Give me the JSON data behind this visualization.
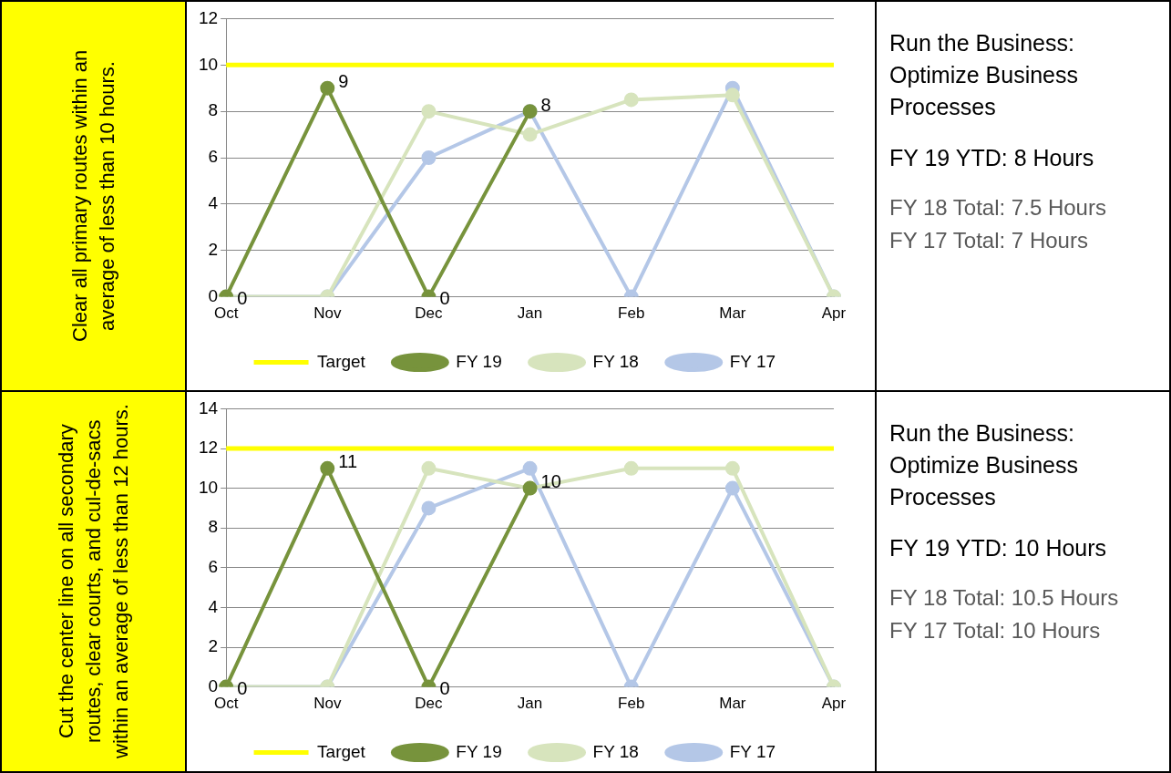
{
  "chart_data": [
    {
      "type": "line",
      "ylabel": "Clear all primary routes within an average of less than 10 hours.",
      "categories": [
        "Oct",
        "Nov",
        "Dec",
        "Jan",
        "Feb",
        "Mar",
        "Apr"
      ],
      "ylim": [
        0,
        12
      ],
      "yticks": [
        0,
        2,
        4,
        6,
        8,
        10,
        12
      ],
      "grid": "y",
      "legend": "bottom",
      "series": [
        {
          "name": "FY 17",
          "color": "#b4c7e7",
          "marker": "circle",
          "values": [
            0,
            0,
            6,
            8,
            0,
            9,
            0
          ]
        },
        {
          "name": "FY 18",
          "color": "#d7e4bd",
          "marker": "circle",
          "values": [
            0,
            0,
            8,
            7,
            8.5,
            8.7,
            0
          ]
        },
        {
          "name": "FY 19",
          "color": "#77933c",
          "marker": "circle",
          "values": [
            0,
            9,
            0,
            8,
            null,
            null,
            null
          ],
          "value_labels": [
            "0",
            "9",
            "0",
            "8",
            null,
            null,
            null
          ]
        },
        {
          "name": "Target",
          "color": "#ffff00",
          "marker": "none",
          "values": [
            10,
            10,
            10,
            10,
            10,
            10,
            10
          ]
        }
      ]
    },
    {
      "type": "other",
      "title": "Run the Business: Optimize Business Processes",
      "annotations": [
        "FY 19 YTD:  8  Hours",
        "FY 18 Total:  7.5 Hours",
        "FY 17 Total:  7 Hours"
      ]
    },
    {
      "type": "line",
      "ylabel": "Cut the center line on all secondary routes, clear courts, and cul-de-sacs within an average of less than 12 hours.",
      "categories": [
        "Oct",
        "Nov",
        "Dec",
        "Jan",
        "Feb",
        "Mar",
        "Apr"
      ],
      "ylim": [
        0,
        14
      ],
      "yticks": [
        0,
        2,
        4,
        6,
        8,
        10,
        12,
        14
      ],
      "grid": "y",
      "legend": "bottom",
      "series": [
        {
          "name": "FY 17",
          "color": "#b4c7e7",
          "marker": "circle",
          "values": [
            0,
            0,
            9,
            11,
            0,
            10,
            0
          ]
        },
        {
          "name": "FY 18",
          "color": "#d7e4bd",
          "marker": "circle",
          "values": [
            0,
            0,
            11,
            10,
            11,
            11,
            0
          ]
        },
        {
          "name": "FY 19",
          "color": "#77933c",
          "marker": "circle",
          "values": [
            0,
            11,
            0,
            10,
            null,
            null,
            null
          ],
          "value_labels": [
            "0",
            "11",
            "0",
            "10",
            null,
            null,
            null
          ]
        },
        {
          "name": "Target",
          "color": "#ffff00",
          "marker": "none",
          "values": [
            12,
            12,
            12,
            12,
            12,
            12,
            12
          ]
        }
      ]
    },
    {
      "type": "other",
      "title": "Run the Business: Optimize Business Processes",
      "annotations": [
        "FY 19 YTD:  10  Hours",
        "FY 18 Total:  10.5 Hours",
        "FY 17 Total:  10 Hours"
      ]
    }
  ]
}
